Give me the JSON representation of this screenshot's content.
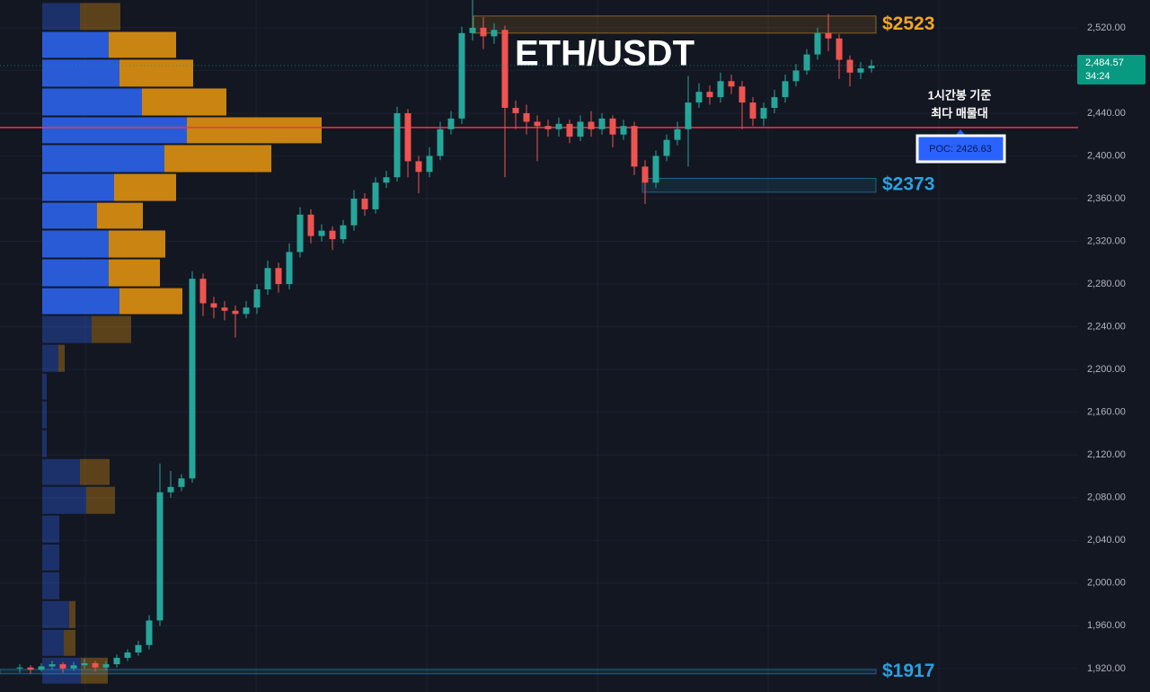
{
  "chart_data": {
    "type": "candlestick",
    "title": "ETH/USDT",
    "ylim": [
      1898,
      2546
    ],
    "yticks": [
      {
        "value": 1920,
        "label": "1,920.00"
      },
      {
        "value": 1960,
        "label": "1,960.00"
      },
      {
        "value": 2000,
        "label": "2,000.00"
      },
      {
        "value": 2040,
        "label": "2,040.00"
      },
      {
        "value": 2080,
        "label": "2,080.00"
      },
      {
        "value": 2120,
        "label": "2,120.00"
      },
      {
        "value": 2160,
        "label": "2,160.00"
      },
      {
        "value": 2200,
        "label": "2,200.00"
      },
      {
        "value": 2240,
        "label": "2,240.00"
      },
      {
        "value": 2280,
        "label": "2,280.00"
      },
      {
        "value": 2320,
        "label": "2,320.00"
      },
      {
        "value": 2360,
        "label": "2,360.00"
      },
      {
        "value": 2400,
        "label": "2,400.00"
      },
      {
        "value": 2440,
        "label": "2,440.00"
      },
      {
        "value": 2480,
        "label": "2,480.00"
      },
      {
        "value": 2520,
        "label": "2,520.00"
      }
    ],
    "grid": true,
    "up_color": "#26a69a",
    "down_color": "#ef5350",
    "open": [
      1920,
      1921,
      1919,
      1922,
      1924,
      1920,
      1923,
      1925,
      1921,
      1924,
      1930,
      1935,
      1942,
      1965,
      2085,
      2090,
      2098,
      2285,
      2262,
      2258,
      2255,
      2252,
      2258,
      2275,
      2295,
      2280,
      2310,
      2345,
      2325,
      2330,
      2322,
      2335,
      2360,
      2350,
      2375,
      2380,
      2440,
      2395,
      2385,
      2400,
      2425,
      2435,
      2515,
      2520,
      2512,
      2518,
      2445,
      2440,
      2432,
      2428,
      2425,
      2430,
      2418,
      2432,
      2425,
      2435,
      2420,
      2428,
      2390,
      2375,
      2400,
      2415,
      2425,
      2450,
      2460,
      2455,
      2470,
      2465,
      2450,
      2435,
      2445,
      2455,
      2470,
      2480,
      2495,
      2515,
      2510,
      2490,
      2478,
      2482
    ],
    "high": [
      1924,
      1923,
      1925,
      1927,
      1926,
      1926,
      1929,
      1927,
      1927,
      1933,
      1938,
      1946,
      1970,
      2112,
      2105,
      2102,
      2292,
      2290,
      2268,
      2264,
      2260,
      2264,
      2280,
      2302,
      2300,
      2318,
      2352,
      2350,
      2336,
      2334,
      2340,
      2368,
      2365,
      2380,
      2386,
      2446,
      2444,
      2400,
      2408,
      2432,
      2442,
      2521,
      2546,
      2530,
      2524,
      2522,
      2452,
      2448,
      2438,
      2434,
      2436,
      2434,
      2438,
      2442,
      2440,
      2438,
      2434,
      2432,
      2396,
      2405,
      2420,
      2432,
      2475,
      2468,
      2466,
      2478,
      2476,
      2470,
      2455,
      2450,
      2462,
      2476,
      2486,
      2500,
      2520,
      2533,
      2514,
      2494,
      2488,
      2490
    ],
    "low": [
      1916,
      1915,
      1917,
      1919,
      1916,
      1918,
      1920,
      1917,
      1918,
      1921,
      1927,
      1932,
      1938,
      1960,
      2080,
      2086,
      2094,
      2250,
      2248,
      2246,
      2230,
      2248,
      2252,
      2270,
      2272,
      2275,
      2305,
      2318,
      2320,
      2312,
      2318,
      2330,
      2344,
      2346,
      2370,
      2376,
      2380,
      2365,
      2380,
      2396,
      2420,
      2430,
      2508,
      2500,
      2505,
      2380,
      2425,
      2420,
      2395,
      2418,
      2418,
      2412,
      2414,
      2418,
      2420,
      2408,
      2415,
      2382,
      2355,
      2370,
      2395,
      2410,
      2390,
      2445,
      2448,
      2450,
      2458,
      2425,
      2428,
      2428,
      2440,
      2450,
      2465,
      2476,
      2490,
      2498,
      2472,
      2465,
      2472,
      2478
    ],
    "close": [
      1921,
      1919,
      1922,
      1924,
      1920,
      1923,
      1925,
      1921,
      1924,
      1930,
      1935,
      1942,
      1965,
      2085,
      2090,
      2098,
      2285,
      2262,
      2258,
      2255,
      2252,
      2258,
      2275,
      2295,
      2280,
      2310,
      2345,
      2325,
      2330,
      2322,
      2335,
      2360,
      2350,
      2375,
      2380,
      2440,
      2395,
      2385,
      2400,
      2425,
      2435,
      2515,
      2520,
      2512,
      2518,
      2445,
      2440,
      2432,
      2428,
      2425,
      2430,
      2418,
      2432,
      2425,
      2435,
      2420,
      2428,
      2390,
      2375,
      2400,
      2415,
      2425,
      2450,
      2460,
      2455,
      2470,
      2465,
      2450,
      2435,
      2445,
      2455,
      2470,
      2480,
      2495,
      2515,
      2510,
      2490,
      2478,
      2482,
      2484.57
    ],
    "last_price": {
      "value": 2484.57,
      "label": "2,484.57"
    },
    "countdown": "34:24",
    "last_color": "#089981",
    "profile": {
      "prices": [
        2544,
        2517,
        2491,
        2464,
        2437,
        2411,
        2384,
        2357,
        2331,
        2304,
        2277,
        2251,
        2224,
        2197,
        2171,
        2144,
        2117,
        2091,
        2064,
        2037,
        2011,
        1984,
        1957,
        1931
      ],
      "buy": [
        42,
        74,
        86,
        111,
        161,
        136,
        80,
        61,
        74,
        74,
        86,
        55,
        18,
        5,
        5,
        5,
        42,
        49,
        19,
        19,
        19,
        30,
        24,
        43
      ],
      "sell": [
        45,
        75,
        82,
        94,
        150,
        119,
        69,
        51,
        63,
        57,
        70,
        44,
        7,
        0,
        0,
        0,
        33,
        32,
        0,
        0,
        0,
        7,
        13,
        30
      ],
      "value_area_rows": [
        1,
        10
      ],
      "buy_color": "#2a5bd7",
      "sell_color": "#c98412"
    },
    "poc": {
      "value": 2426.63,
      "label": "POC: 2426.63",
      "color": "#f23645"
    },
    "note": [
      "1시간봉 기준",
      "최다 매물대"
    ],
    "levels": [
      {
        "label": "$2523",
        "range": [
          2515,
          2531
        ],
        "color": "#f5a623"
      },
      {
        "label": "$2373",
        "range": [
          2366,
          2379
        ],
        "color": "#2aa1e0"
      },
      {
        "label": "$1917",
        "range": [
          1915,
          1919
        ],
        "color": "#2aa1e0"
      }
    ]
  }
}
